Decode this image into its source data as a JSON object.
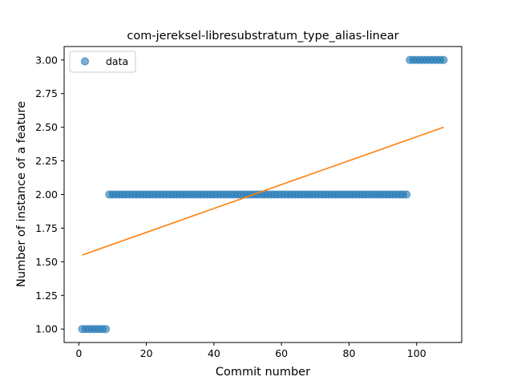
{
  "chart_data": {
    "type": "scatter",
    "title": "com-jereksel-libresubstratum_type_alias-linear",
    "xlabel": "Commit number",
    "ylabel": "Number of instance of a feature",
    "xlim": [
      -4.35,
      113.35
    ],
    "ylim": [
      0.9,
      3.1
    ],
    "xticks": [
      0,
      20,
      40,
      60,
      80,
      100
    ],
    "xtick_labels": [
      "0",
      "20",
      "40",
      "60",
      "80",
      "100"
    ],
    "yticks": [
      1.0,
      1.25,
      1.5,
      1.75,
      2.0,
      2.25,
      2.5,
      2.75,
      3.0
    ],
    "ytick_labels": [
      "1.00",
      "1.25",
      "1.50",
      "1.75",
      "2.00",
      "2.25",
      "2.50",
      "2.75",
      "3.00"
    ],
    "grid": false,
    "legend_position": "top-left",
    "series": [
      {
        "name": "data",
        "kind": "scatter",
        "color": "#1f77b4",
        "segments": [
          {
            "x_start": 1,
            "x_end": 8,
            "y": 1
          },
          {
            "x_start": 9,
            "x_end": 97,
            "y": 2
          },
          {
            "x_start": 98,
            "x_end": 108,
            "y": 3
          }
        ]
      },
      {
        "kind": "line",
        "color": "#ff7f0e",
        "x": [
          1,
          108
        ],
        "y": [
          1.55,
          2.5
        ]
      }
    ]
  }
}
